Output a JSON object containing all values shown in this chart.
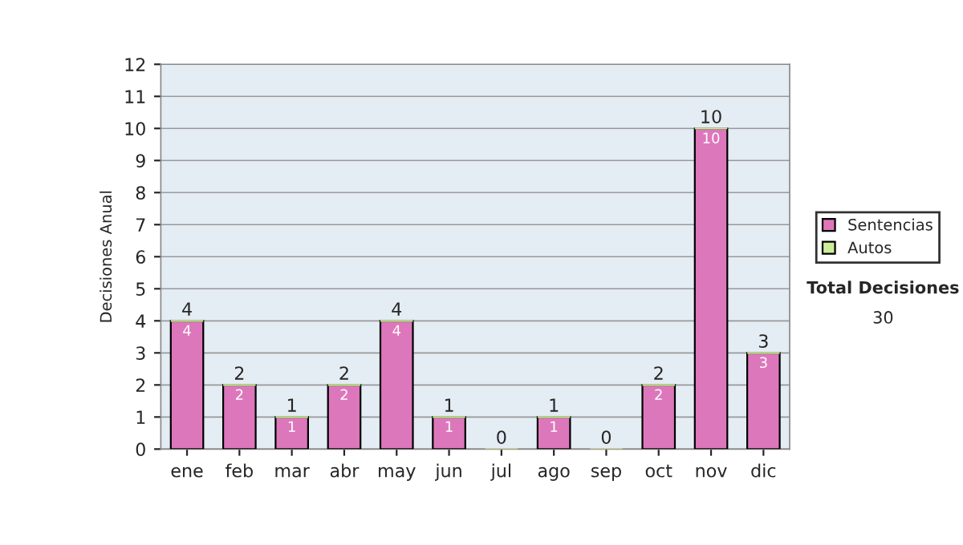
{
  "chart_data": {
    "type": "bar",
    "stacked": true,
    "ylabel": "Decisiones Anual",
    "categories": [
      "ene",
      "feb",
      "mar",
      "abr",
      "may",
      "jun",
      "jul",
      "ago",
      "sep",
      "oct",
      "nov",
      "dic"
    ],
    "series": [
      {
        "name": "Sentencias",
        "color": "#dd77bb",
        "values": [
          4,
          2,
          1,
          2,
          4,
          1,
          0,
          1,
          0,
          2,
          10,
          3
        ],
        "value_labels": [
          "4",
          "2",
          "1",
          "2",
          "4",
          "1",
          null,
          "1",
          null,
          "2",
          "10",
          "3"
        ]
      },
      {
        "name": "Autos",
        "color": "#ccee99",
        "values": [
          0,
          0,
          0,
          0,
          0,
          0,
          0,
          0,
          0,
          0,
          0,
          0
        ]
      }
    ],
    "totals": [
      "4",
      "2",
      "1",
      "2",
      "4",
      "1",
      "0",
      "1",
      "0",
      "2",
      "10",
      "3"
    ],
    "ylim": [
      0,
      12
    ],
    "yticks": [
      0,
      1,
      2,
      3,
      4,
      5,
      6,
      7,
      8,
      9,
      10,
      11,
      12
    ],
    "grid": "y",
    "legend": "right",
    "annotations": [
      "Total Decisiones",
      "30"
    ]
  }
}
